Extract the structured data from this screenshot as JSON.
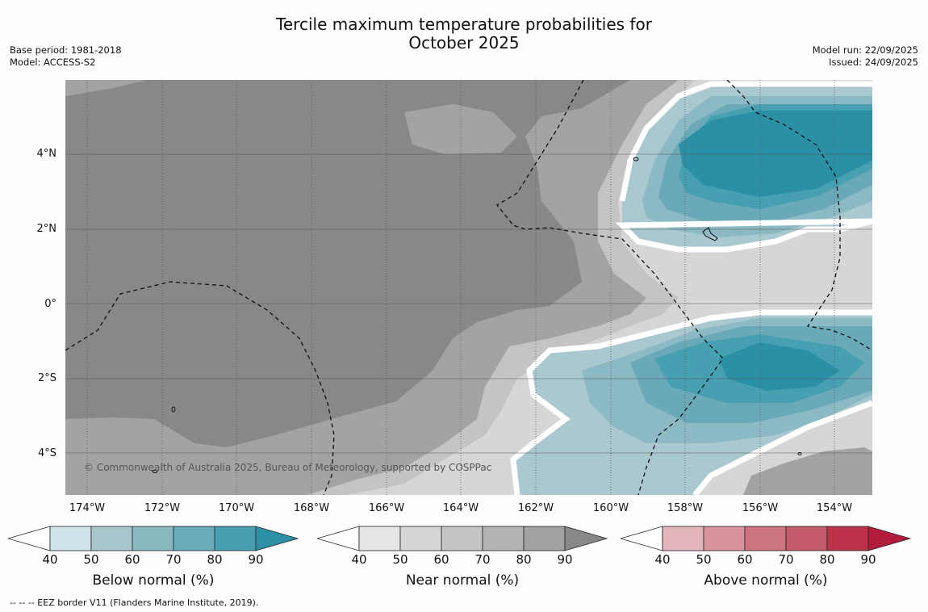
{
  "title": {
    "line1": "Tercile maximum temperature probabilities for",
    "line2": "October 2025"
  },
  "meta_left": {
    "base_period": "Base period: 1981-2018",
    "model": "Model: ACCESS-S2"
  },
  "meta_right": {
    "model_run": "Model run: 22/09/2025",
    "issued": "Issued: 24/09/2025"
  },
  "map": {
    "lat_labels": [
      "4°N",
      "2°N",
      "0°",
      "2°S",
      "4°S"
    ],
    "lon_labels": [
      "174°W",
      "172°W",
      "170°W",
      "168°W",
      "166°W",
      "164°W",
      "162°W",
      "160°W",
      "158°W",
      "156°W",
      "154°W"
    ],
    "copyright": "© Commonwealth of Australia 2025, Bureau of Meteorology, supported by COSPPac",
    "colors": {
      "near_dark": "#888888",
      "near_mid": "#a3a3a3",
      "near_light": "#c4c4c4",
      "near_pale": "#d6d6d6",
      "below_1": "#a9c8cf",
      "below_2": "#8bbac4",
      "below_3": "#6aaab8",
      "below_4": "#46a0b1",
      "below_5": "#2b90a6"
    }
  },
  "colorbars": [
    {
      "title": "Below normal (%)",
      "ticks": [
        "40",
        "50",
        "60",
        "70",
        "80",
        "90"
      ],
      "colors": [
        "#ffffff",
        "#cce4ea",
        "#a7c7cd",
        "#8ab8c1",
        "#6aabb9",
        "#479fb0",
        "#2d90a6"
      ]
    },
    {
      "title": "Near normal (%)",
      "ticks": [
        "40",
        "50",
        "60",
        "70",
        "80",
        "90"
      ],
      "colors": [
        "#ffffff",
        "#e6e6e6",
        "#d6d6d6",
        "#c5c5c5",
        "#b3b3b3",
        "#a2a2a2",
        "#888888"
      ]
    },
    {
      "title": "Above normal (%)",
      "ticks": [
        "40",
        "50",
        "60",
        "70",
        "80",
        "90"
      ],
      "colors": [
        "#ffffff",
        "#e3b6be",
        "#d8939e",
        "#cc7480",
        "#c35a69",
        "#bb3249",
        "#b01c39"
      ]
    }
  ],
  "footnote": "--  --  -- EEZ border V11 (Flanders Marine Institute, 2019)."
}
